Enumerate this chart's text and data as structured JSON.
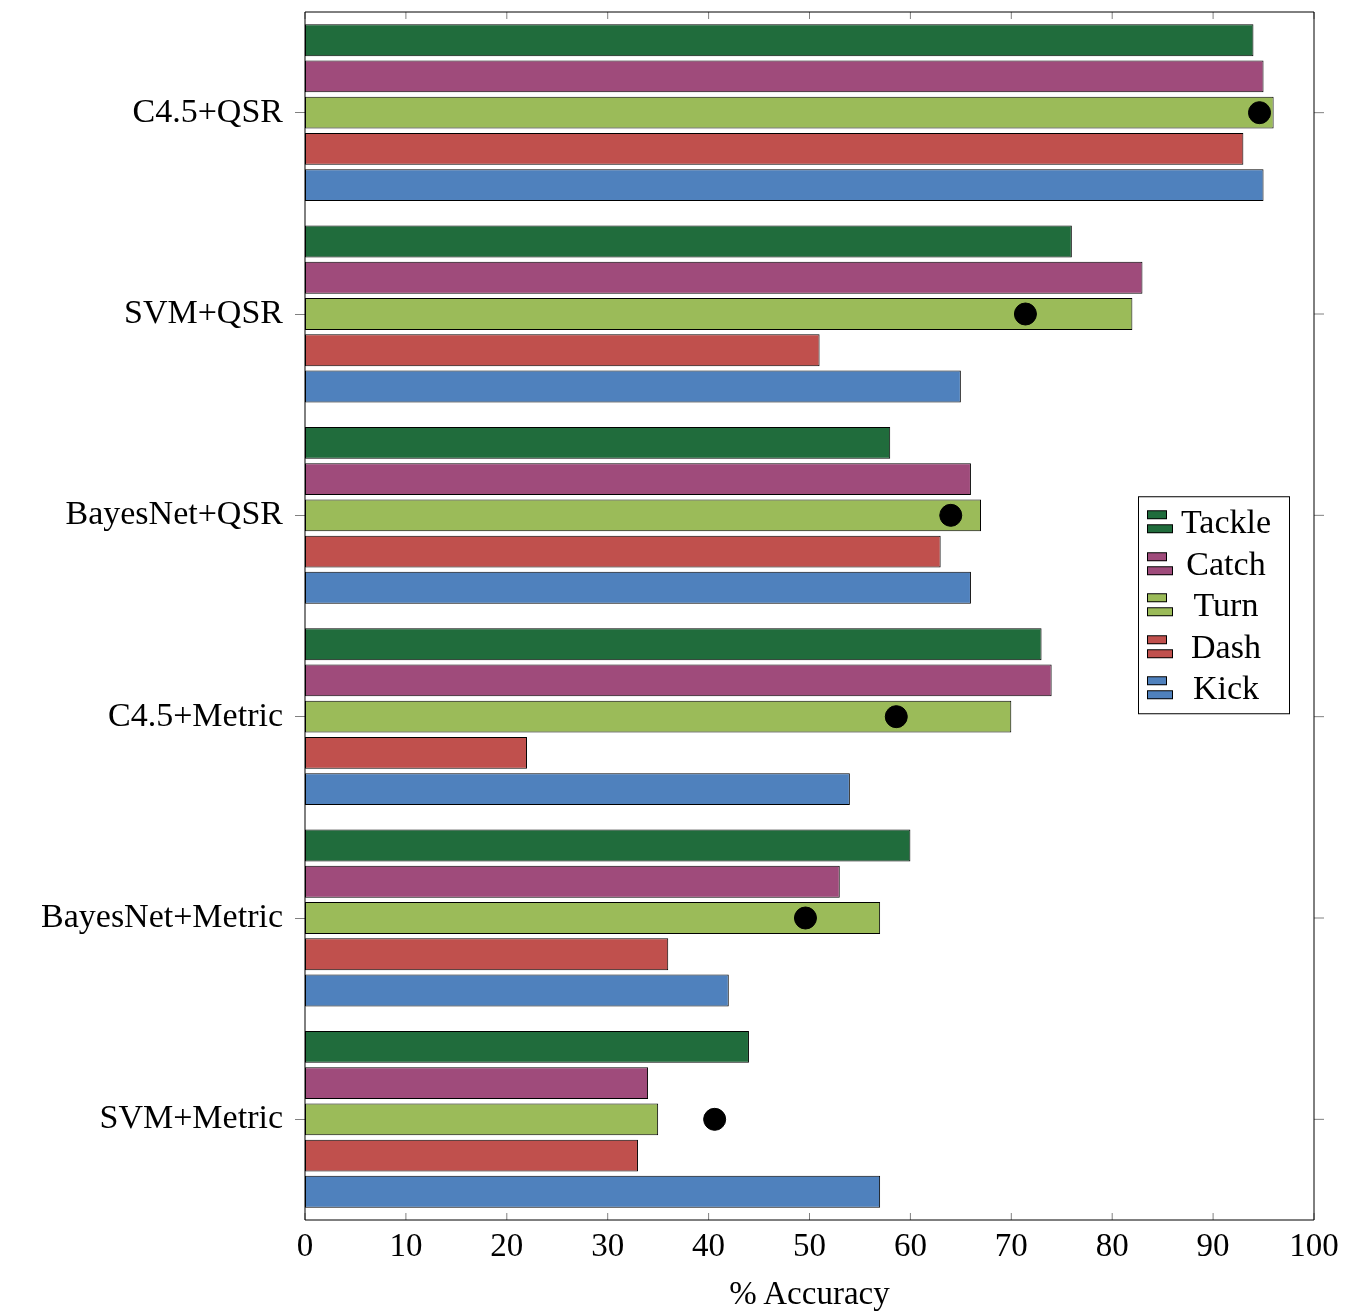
{
  "chart_data": {
    "type": "bar",
    "orientation": "horizontal",
    "xlabel": "% Accuracy",
    "categories": [
      "C4.5+QSR",
      "SVM+QSR",
      "BayesNet+QSR",
      "C4.5+Metric",
      "BayesNet+Metric",
      "SVM+Metric"
    ],
    "series": [
      {
        "name": "Tackle",
        "color": "#206c3c",
        "values": [
          94,
          76,
          58,
          73,
          60,
          44
        ]
      },
      {
        "name": "Catch",
        "color": "#9f4b7b",
        "values": [
          95,
          83,
          66,
          74,
          53,
          34
        ]
      },
      {
        "name": "Turn",
        "color": "#9bbb59",
        "values": [
          96,
          82,
          67,
          70,
          57,
          35
        ]
      },
      {
        "name": "Dash",
        "color": "#c0504d",
        "values": [
          93,
          51,
          63,
          22,
          36,
          33
        ]
      },
      {
        "name": "Kick",
        "color": "#4f81bd",
        "values": [
          95,
          65,
          66,
          54,
          42,
          57
        ]
      },
      {
        "type": "scatter",
        "color": "#000000",
        "marker": "circle",
        "x": [
          "C4.5+QSR",
          "SVM+QSR",
          "BayesNet+QSR",
          "C4.5+Metric",
          "BayesNet+Metric",
          "SVM+Metric"
        ],
        "values": [
          94.6,
          71.4,
          64.0,
          58.6,
          49.6,
          40.6
        ]
      }
    ],
    "xlim": [
      0,
      100
    ],
    "xticks": [
      0,
      10,
      20,
      30,
      40,
      50,
      60,
      70,
      80,
      90,
      100
    ],
    "legend": "right"
  }
}
